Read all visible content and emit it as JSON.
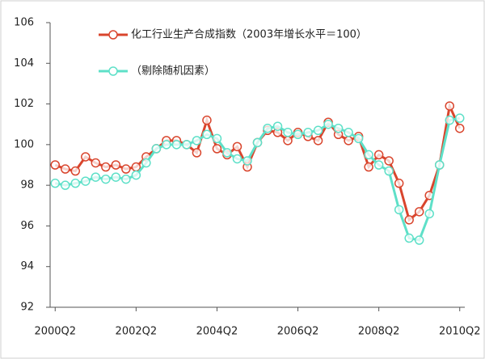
{
  "chart_data": {
    "type": "line",
    "categories": [
      "2000Q2",
      null,
      null,
      null,
      null,
      null,
      null,
      null,
      "2002Q2",
      null,
      null,
      null,
      null,
      null,
      null,
      null,
      "2004Q2",
      null,
      null,
      null,
      null,
      null,
      null,
      null,
      "2006Q2",
      null,
      null,
      null,
      null,
      null,
      null,
      null,
      "2008Q2",
      null,
      null,
      null,
      null,
      null,
      null,
      null,
      "2010Q2"
    ],
    "series": [
      {
        "name": "化工行业生产合成指数（2003年增长水平＝100）",
        "color": "#d9452d",
        "values": [
          99.0,
          98.8,
          98.7,
          99.4,
          99.1,
          98.9,
          99.0,
          98.8,
          98.9,
          99.4,
          99.8,
          100.2,
          100.2,
          100.0,
          99.6,
          101.2,
          99.8,
          99.5,
          99.9,
          98.9,
          100.1,
          100.7,
          100.6,
          100.2,
          100.6,
          100.4,
          100.2,
          101.1,
          100.5,
          100.2,
          100.4,
          98.9,
          99.5,
          99.2,
          98.1,
          96.3,
          96.7,
          97.5,
          99.0,
          101.9,
          100.8
        ]
      },
      {
        "name": "（剔除随机因素）",
        "color": "#5ee0c8",
        "values": [
          98.1,
          98.0,
          98.1,
          98.2,
          98.4,
          98.3,
          98.4,
          98.3,
          98.5,
          99.1,
          99.8,
          100.0,
          100.0,
          100.0,
          100.2,
          100.5,
          100.3,
          99.6,
          99.3,
          99.2,
          100.1,
          100.8,
          100.9,
          100.6,
          100.5,
          100.6,
          100.7,
          101.0,
          100.8,
          100.6,
          100.3,
          99.5,
          99.0,
          98.7,
          96.8,
          95.4,
          95.3,
          96.6,
          99.0,
          101.2,
          101.3
        ]
      }
    ],
    "ylim": [
      92,
      106
    ],
    "yticks": [
      92,
      94,
      96,
      98,
      100,
      102,
      104,
      106
    ]
  }
}
